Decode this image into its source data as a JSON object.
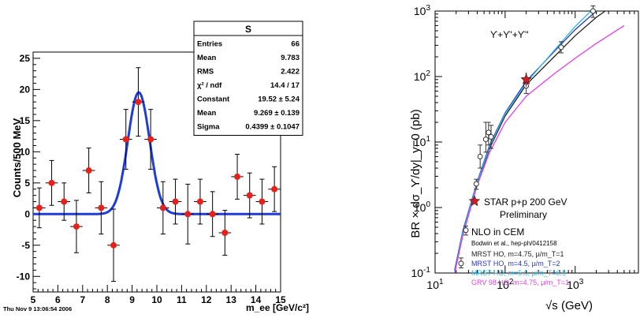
{
  "chart_data": [
    {
      "type": "scatter",
      "title": "",
      "xlabel": "m_ee [GeV/c²]",
      "ylabel": "Counts/500 MeV",
      "xlim": [
        5,
        15
      ],
      "ylim": [
        -12.5,
        26
      ],
      "xticks": [
        "5",
        "6",
        "7",
        "8",
        "9",
        "10",
        "11",
        "12",
        "13",
        "14",
        "15"
      ],
      "yticks": [
        "-10",
        "-5",
        "0",
        "5",
        "10",
        "15",
        "20",
        "25"
      ],
      "grid": false,
      "date_footer": "Thu Nov  9 13:06:54 2006",
      "stats_box": {
        "title": "S",
        "rows": [
          {
            "label": "Entries",
            "value": "66"
          },
          {
            "label": "Mean",
            "value": "9.783"
          },
          {
            "label": "RMS",
            "value": "2.422"
          },
          {
            "label": "χ² / ndf",
            "value": "14.4 / 17"
          },
          {
            "label": "Constant",
            "value": "19.52 ± 5.24"
          },
          {
            "label": "Mean",
            "value": "9.269 ± 0.139"
          },
          {
            "label": "Sigma",
            "value": "0.4399 ± 0.1047"
          }
        ]
      },
      "points": [
        {
          "x": 5.25,
          "y": 1,
          "err": 3.2
        },
        {
          "x": 5.75,
          "y": 5,
          "err": 3.6
        },
        {
          "x": 6.25,
          "y": 2,
          "err": 3.0
        },
        {
          "x": 6.75,
          "y": -2,
          "err": 4.2
        },
        {
          "x": 7.25,
          "y": 7,
          "err": 3.6
        },
        {
          "x": 7.75,
          "y": 1,
          "err": 4.2
        },
        {
          "x": 8.25,
          "y": -5,
          "err": 5.8
        },
        {
          "x": 8.75,
          "y": 12,
          "err": 4.8
        },
        {
          "x": 9.25,
          "y": 18,
          "err": 5.5
        },
        {
          "x": 9.75,
          "y": 12,
          "err": 4.8
        },
        {
          "x": 10.25,
          "y": 1,
          "err": 4.2
        },
        {
          "x": 10.75,
          "y": 2,
          "err": 3.6
        },
        {
          "x": 11.25,
          "y": 0,
          "err": 4.8
        },
        {
          "x": 11.75,
          "y": 2,
          "err": 3.6
        },
        {
          "x": 12.25,
          "y": 0,
          "err": 3.6
        },
        {
          "x": 12.75,
          "y": -3,
          "err": 3.6
        },
        {
          "x": 13.25,
          "y": 6,
          "err": 3.6
        },
        {
          "x": 13.75,
          "y": 3,
          "err": 3.6
        },
        {
          "x": 14.25,
          "y": 2,
          "err": 3.6
        },
        {
          "x": 14.75,
          "y": 4,
          "err": 3.6
        }
      ],
      "fit": {
        "type": "gaussian",
        "constant": 19.52,
        "mean": 9.269,
        "sigma": 0.4399,
        "color": "#1f3cd6"
      },
      "marker_color": "#e8201a"
    },
    {
      "type": "line",
      "title": "ϒ+ϒ'+ϒ''",
      "xlabel": "√s (GeV)",
      "ylabel": "BR × dσ_ϒ/dy|_y=0 (pb)",
      "xscale": "log",
      "yscale": "log",
      "xlim": [
        10,
        8000
      ],
      "ylim": [
        0.1,
        1000
      ],
      "xticks": [
        {
          "value": 10,
          "base": "10",
          "exp": "1"
        },
        {
          "value": 100,
          "base": "10",
          "exp": "2"
        },
        {
          "value": 1000,
          "base": "10",
          "exp": "3"
        }
      ],
      "yticks": [
        {
          "value": 0.1,
          "base": "10",
          "exp": "-1"
        },
        {
          "value": 1,
          "base": "10",
          "exp": "0"
        },
        {
          "value": 10,
          "base": "10",
          "exp": "1"
        },
        {
          "value": 100,
          "base": "10",
          "exp": "2"
        },
        {
          "value": 1000,
          "base": "10",
          "exp": "3"
        }
      ],
      "series": [
        {
          "name": "MRST HO, m=4.75, μ/m_T=1",
          "color": "#222222",
          "x": [
            19,
            25,
            40,
            60,
            100,
            200,
            500,
            1000,
            2000,
            5000
          ],
          "y": [
            0.1,
            0.4,
            2.3,
            8,
            25,
            75,
            200,
            420,
            800,
            1600
          ]
        },
        {
          "name": "MRST HO, m=4.5, μ/m_T=2",
          "color": "#2b39b8",
          "x": [
            19,
            25,
            40,
            60,
            100,
            200,
            500,
            1000,
            2000,
            5000
          ],
          "y": [
            0.11,
            0.45,
            2.5,
            9,
            28,
            85,
            240,
            520,
            1000,
            2100
          ]
        },
        {
          "name": "MRST HO, m=5.0, μ/m_T=0.5",
          "color": "#33b8e0",
          "x": [
            19,
            25,
            40,
            60,
            100,
            200,
            500,
            1000,
            2000,
            5000
          ],
          "y": [
            0.1,
            0.42,
            2.4,
            8.5,
            27,
            80,
            250,
            580,
            1200,
            2600
          ]
        },
        {
          "name": "GRV 98 HO, m=4.75, μ/m_T=1",
          "color": "#e040e0",
          "x": [
            19,
            25,
            40,
            60,
            100,
            200,
            500,
            1000,
            2000,
            5000
          ],
          "y": [
            0.1,
            0.38,
            2.2,
            7,
            20,
            50,
            110,
            190,
            320,
            600
          ]
        }
      ],
      "points": [
        {
          "x": 23.5,
          "y": 0.14,
          "err": [
            0.12,
            0.17
          ]
        },
        {
          "x": 27.5,
          "y": 0.45,
          "err": [
            0.38,
            0.52
          ]
        },
        {
          "x": 38.8,
          "y": 2.3,
          "err": [
            1.9,
            2.7
          ]
        },
        {
          "x": 44,
          "y": 6,
          "err": [
            4,
            9
          ]
        },
        {
          "x": 53,
          "y": 11,
          "err": [
            7,
            20
          ]
        },
        {
          "x": 58,
          "y": 14,
          "err": [
            9,
            20
          ]
        },
        {
          "x": 63,
          "y": 12,
          "err": [
            8,
            18
          ]
        },
        {
          "x": 200,
          "y": 72,
          "err": [
            55,
            95
          ]
        },
        {
          "x": 630,
          "y": 280,
          "err": [
            230,
            340
          ]
        },
        {
          "x": 1800,
          "y": 1000,
          "err": [
            800,
            1200
          ]
        }
      ],
      "star": {
        "x": 200,
        "y": 90,
        "err": [
          70,
          115
        ],
        "color": "#cc1f1f"
      },
      "legend": {
        "star_label": "STAR p+p 200 GeV",
        "star_sublabel": "Preliminary",
        "header": "NLO in CEM",
        "reference": "Bodwin et al., hep-ph/0412158"
      }
    }
  ]
}
